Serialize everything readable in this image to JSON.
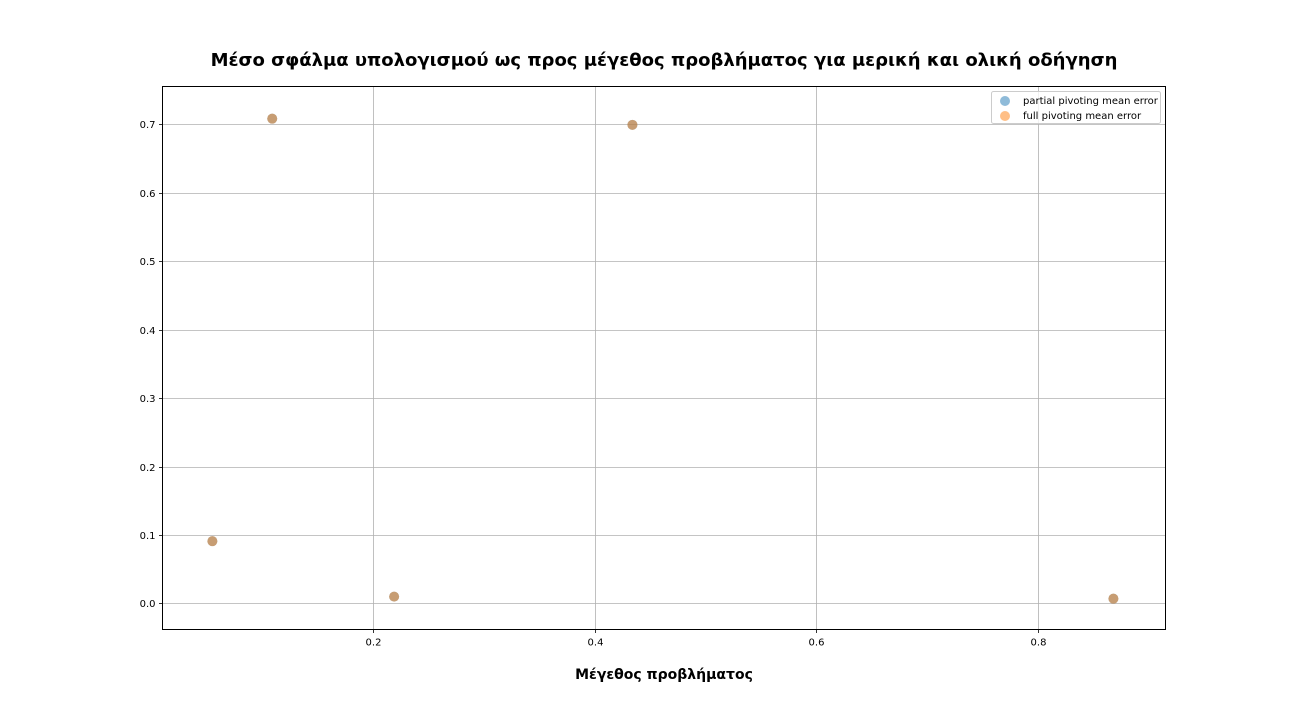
{
  "chart_data": {
    "type": "scatter",
    "title": "Μέσο σφάλμα υπολογισμού ως προς μέγεθος προβλήματος για μερική και ολική οδήγηση",
    "xlabel": "Μέγεθος προβλήματος",
    "ylabel": "",
    "xlim": [
      0.01,
      0.915
    ],
    "ylim": [
      -0.038,
      0.755
    ],
    "xticks": [
      0.2,
      0.4,
      0.6,
      0.8
    ],
    "xtick_labels": [
      "0.2",
      "0.4",
      "0.6",
      "0.8"
    ],
    "yticks": [
      0.0,
      0.1,
      0.2,
      0.3,
      0.4,
      0.5,
      0.6,
      0.7
    ],
    "ytick_labels": [
      "0.0",
      "0.1",
      "0.2",
      "0.3",
      "0.4",
      "0.5",
      "0.6",
      "0.7"
    ],
    "grid": true,
    "legend_position": "top-right",
    "series": [
      {
        "name": "partial pivoting mean error",
        "color": "#1f77b4",
        "x": [
          0.055,
          0.109,
          0.219,
          0.434,
          0.868
        ],
        "y": [
          0.091,
          0.708,
          0.01,
          0.699,
          0.007
        ]
      },
      {
        "name": "full pivoting mean error",
        "color": "#ff7f0e",
        "x": [
          0.055,
          0.109,
          0.219,
          0.434,
          0.868
        ],
        "y": [
          0.091,
          0.708,
          0.01,
          0.699,
          0.007
        ]
      }
    ]
  }
}
